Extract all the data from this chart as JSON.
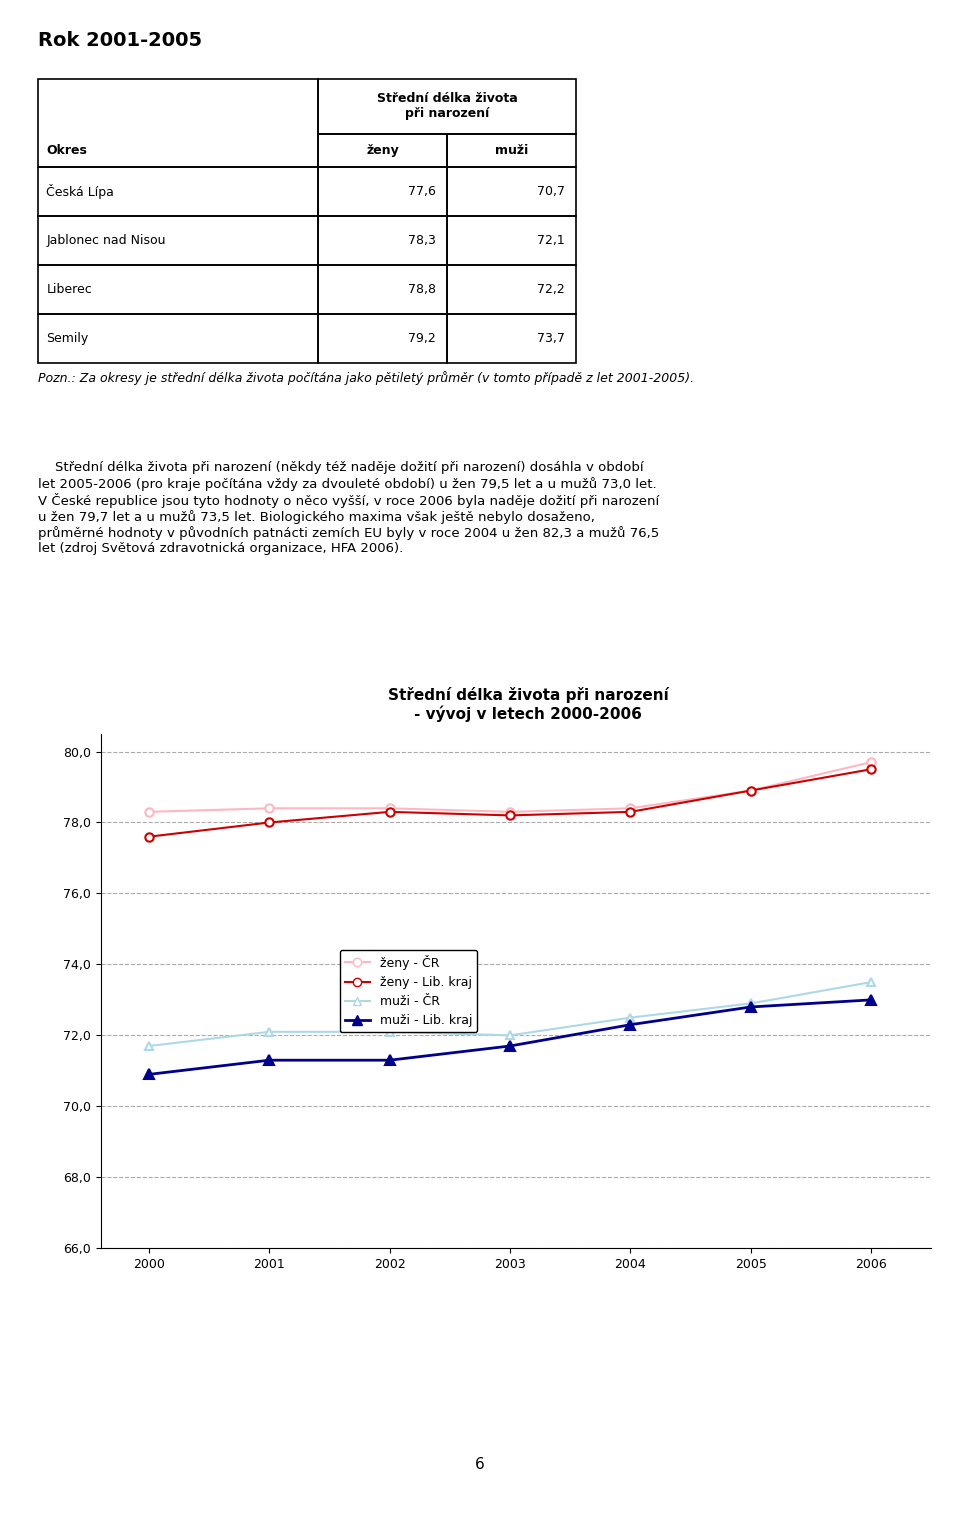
{
  "title_top": "Rok 2001-2005",
  "table_header_col1": "Okres",
  "table_header_col2_line1": "Střední délka života",
  "table_header_col2_line2": "při narození",
  "table_subheader_zeny": "ženy",
  "table_subheader_muzi": "muži",
  "table_rows": [
    [
      "Česká Lípa",
      "77,6",
      "70,7"
    ],
    [
      "Jablonec nad Nisou",
      "78,3",
      "72,1"
    ],
    [
      "Liberec",
      "78,8",
      "72,2"
    ],
    [
      "Semily",
      "79,2",
      "73,7"
    ]
  ],
  "pozn_text": "Pozn.: Za okresy je střední délka života počítána jako pětiletý průměr (v tomto případě z let 2001-2005).",
  "body_text_lines": [
    "    Střední délka života při narození (někdy též naděje dožití při narození) dosáhla v období",
    "let 2005-2006 (pro kraje počítána vždy za dvouleté období) u žen 79,5 let a u mužů 73,0 let.",
    "V České republice jsou tyto hodnoty o něco vyšší, v roce 2006 byla naděje dožití při narození",
    "u žen 79,7 let a u mužů 73,5 let. Biologického maxima však ještě nebylo dosaženo,",
    "průměrné hodnoty v původních patnácti zemích EU byly v roce 2004 u žen 82,3 a mužů 76,5",
    "let (zdroj Světová zdravotnická organizace, HFA 2006)."
  ],
  "chart_title_line1": "Střední délka života při narození",
  "chart_title_line2": "- vývoj v letech 2000-2006",
  "years": [
    2000,
    2001,
    2002,
    2003,
    2004,
    2005,
    2006
  ],
  "zeny_cr": [
    78.3,
    78.4,
    78.4,
    78.3,
    78.4,
    78.9,
    79.7
  ],
  "zeny_lib": [
    77.6,
    78.0,
    78.3,
    78.2,
    78.3,
    78.9,
    79.5
  ],
  "muzi_cr": [
    71.7,
    72.1,
    72.1,
    72.0,
    72.5,
    72.9,
    73.5
  ],
  "muzi_lib": [
    70.9,
    71.3,
    71.3,
    71.7,
    72.3,
    72.8,
    73.0
  ],
  "ylim_min": 66.0,
  "ylim_max": 80.5,
  "yticks": [
    66.0,
    68.0,
    70.0,
    72.0,
    74.0,
    76.0,
    78.0,
    80.0
  ],
  "color_zeny_cr": "#FFB6C1",
  "color_zeny_lib": "#CC0000",
  "color_muzi_cr": "#ADD8E6",
  "color_muzi_lib": "#00008B",
  "legend_labels": [
    "ženy - ČR",
    "ženy - Lib. kraj",
    "muži - ČR",
    "muži - Lib. kraj"
  ],
  "page_number": "6"
}
